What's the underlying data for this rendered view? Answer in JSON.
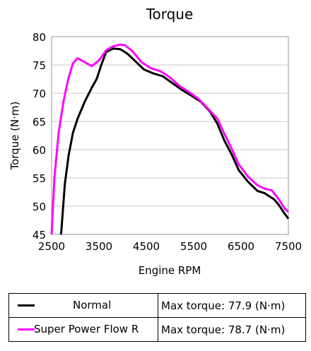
{
  "chart_data": {
    "type": "line",
    "title": "Torque",
    "xlabel": "Engine RPM",
    "ylabel": "Torque (N·m)",
    "xlim": [
      2500,
      7500
    ],
    "ylim": [
      45,
      80
    ],
    "xticks": [
      2500,
      3500,
      4500,
      5500,
      6500,
      7500
    ],
    "yticks": [
      45,
      50,
      55,
      60,
      65,
      70,
      75,
      80
    ],
    "grid": "horizontal",
    "series": [
      {
        "name": "Normal",
        "color": "#000000",
        "points": [
          [
            2700,
            45
          ],
          [
            2780,
            54
          ],
          [
            2860,
            59
          ],
          [
            2950,
            63
          ],
          [
            3050,
            65.5
          ],
          [
            3200,
            68.5
          ],
          [
            3350,
            71
          ],
          [
            3450,
            72.5
          ],
          [
            3550,
            75
          ],
          [
            3650,
            77.3
          ],
          [
            3800,
            77.9
          ],
          [
            3950,
            77.8
          ],
          [
            4100,
            77
          ],
          [
            4250,
            75.8
          ],
          [
            4450,
            74.2
          ],
          [
            4650,
            73.5
          ],
          [
            4850,
            73
          ],
          [
            5050,
            71.8
          ],
          [
            5250,
            70.6
          ],
          [
            5450,
            69.6
          ],
          [
            5650,
            68.5
          ],
          [
            5850,
            66.7
          ],
          [
            6000,
            64.6
          ],
          [
            6150,
            61.6
          ],
          [
            6300,
            59.2
          ],
          [
            6450,
            56.4
          ],
          [
            6650,
            54.3
          ],
          [
            6850,
            52.7
          ],
          [
            7000,
            52.3
          ],
          [
            7200,
            51.2
          ],
          [
            7300,
            50.2
          ],
          [
            7420,
            48.7
          ],
          [
            7500,
            47.8
          ]
        ]
      },
      {
        "name": "Super Power Flow R",
        "color": "#ff00ff",
        "points": [
          [
            2500,
            45
          ],
          [
            2560,
            55
          ],
          [
            2650,
            63
          ],
          [
            2750,
            68.5
          ],
          [
            2850,
            72.5
          ],
          [
            2950,
            75.3
          ],
          [
            3050,
            76.2
          ],
          [
            3200,
            75.5
          ],
          [
            3350,
            74.8
          ],
          [
            3500,
            75.8
          ],
          [
            3650,
            77.6
          ],
          [
            3800,
            78.3
          ],
          [
            3950,
            78.6
          ],
          [
            4050,
            78.5
          ],
          [
            4200,
            77.5
          ],
          [
            4400,
            75.5
          ],
          [
            4600,
            74.4
          ],
          [
            4800,
            73.9
          ],
          [
            5000,
            72.8
          ],
          [
            5200,
            71.3
          ],
          [
            5400,
            70.2
          ],
          [
            5600,
            69
          ],
          [
            5800,
            67.3
          ],
          [
            6000,
            65.5
          ],
          [
            6150,
            62.8
          ],
          [
            6300,
            60.2
          ],
          [
            6450,
            57.4
          ],
          [
            6650,
            55.2
          ],
          [
            6850,
            53.7
          ],
          [
            7000,
            53.1
          ],
          [
            7150,
            52.8
          ],
          [
            7300,
            51.2
          ],
          [
            7420,
            49.6
          ],
          [
            7500,
            49
          ]
        ]
      }
    ]
  },
  "legend": {
    "rows": [
      {
        "label": "Normal",
        "max_text": "Max torque: 77.9 (N·m)",
        "color": "#000000"
      },
      {
        "label": "Super Power Flow R",
        "max_text": "Max torque: 78.7 (N·m)",
        "color": "#ff00ff"
      }
    ]
  }
}
